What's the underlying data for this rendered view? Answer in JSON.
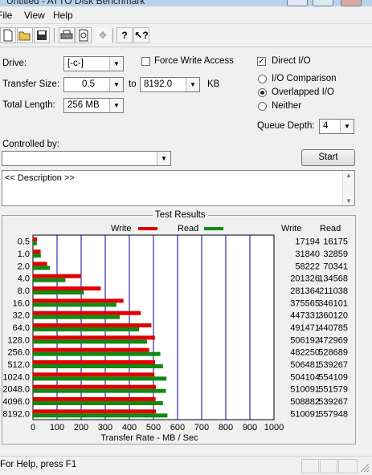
{
  "window": {
    "title": "Untitled - ATTO Disk Benchmark"
  },
  "menu": [
    "File",
    "View",
    "Help"
  ],
  "toolbar": {
    "icons": [
      "new-document-icon",
      "open-folder-icon",
      "save-icon",
      "print-icon",
      "print-preview-icon",
      "move-icon",
      "help-icon",
      "context-help-icon"
    ]
  },
  "form": {
    "drive_label": "Drive:",
    "drive_value": "[-c-]",
    "force_write_label": "Force Write Access",
    "force_write_checked": false,
    "direct_io_label": "Direct I/O",
    "direct_io_checked": true,
    "transfer_size_label": "Transfer Size:",
    "transfer_from": "0.5",
    "to_label": "to",
    "transfer_to": "8192.0",
    "kb_label": "KB",
    "total_length_label": "Total Length:",
    "total_length_value": "256 MB",
    "io_comparison_label": "I/O Comparison",
    "overlapped_io_label": "Overlapped I/O",
    "neither_label": "Neither",
    "io_mode_selected": "Overlapped I/O",
    "queue_depth_label": "Queue Depth:",
    "queue_depth_value": "4",
    "controlled_by_label": "Controlled by:",
    "controlled_by_value": "",
    "start_label": "Start",
    "description": "<< Description >>"
  },
  "results": {
    "title": "Test Results",
    "write_label": "Write",
    "read_label": "Read",
    "write_color": "#e00000",
    "read_color": "#108a10",
    "write_col_header": "Write",
    "read_col_header": "Read"
  },
  "chart_data": {
    "type": "bar",
    "orientation": "horizontal",
    "categories": [
      "0.5",
      "1.0",
      "2.0",
      "4.0",
      "8.0",
      "16.0",
      "32.0",
      "64.0",
      "128.0",
      "256.0",
      "512.0",
      "1024.0",
      "2048.0",
      "4096.0",
      "8192.0"
    ],
    "series": [
      {
        "name": "Write",
        "values": [
          17194,
          31840,
          58222,
          201326,
          281364,
          375565,
          447331,
          491471,
          506192,
          482250,
          506481,
          504104,
          510091,
          508882,
          510091
        ]
      },
      {
        "name": "Read",
        "values": [
          16175,
          32859,
          70341,
          134568,
          211038,
          346101,
          360120,
          440785,
          472969,
          528689,
          539267,
          554109,
          551579,
          539267,
          557948
        ]
      }
    ],
    "xlabel": "Transfer Rate - MB / Sec",
    "xlim": [
      0,
      1000
    ],
    "xticks": [
      "0",
      "100",
      "200",
      "300",
      "400",
      "500",
      "600",
      "700",
      "800",
      "900",
      "1000"
    ],
    "grid": true
  },
  "status": {
    "text": "For Help, press F1"
  }
}
